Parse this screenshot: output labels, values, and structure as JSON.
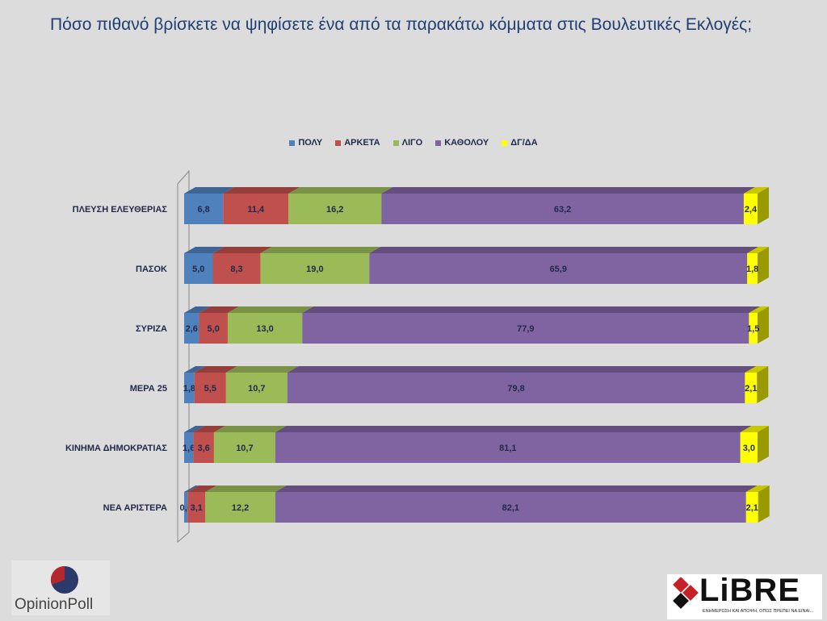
{
  "title": "Πόσο πιθανό βρίσκετε να ψηφίσετε ένα από τα παρακάτω κόμματα στις Βουλευτικές Εκλογές;",
  "chart_data": {
    "type": "bar",
    "orientation": "horizontal",
    "stacked": true,
    "categories": [
      "ΠΛΕΥΣΗ ΕΛΕΥΘΕΡΙΑΣ",
      "ΠΑΣΟΚ",
      "ΣΥΡΙΖΑ",
      "ΜΕΡΑ 25",
      "ΚΙΝΗΜΑ ΔΗΜΟΚΡΑΤΙΑΣ",
      "ΝΕΑ ΑΡΙΣΤΕΡΑ"
    ],
    "series": [
      {
        "name": "ΠΟΛΥ",
        "color": "#4f81bd",
        "values": [
          6.8,
          5.0,
          2.6,
          1.8,
          1.6,
          0.6
        ],
        "labels": [
          "6,8",
          "5,0",
          "2,6",
          "1,8",
          "1,6",
          "0,6"
        ]
      },
      {
        "name": "ΑΡΚΕΤΑ",
        "color": "#c0504d",
        "values": [
          11.4,
          8.3,
          5.0,
          5.5,
          3.6,
          3.1
        ],
        "labels": [
          "11,4",
          "8,3",
          "5,0",
          "5,5",
          "3,6",
          "3,1"
        ]
      },
      {
        "name": "ΛΙΓΟ",
        "color": "#9bbb59",
        "values": [
          16.2,
          19.0,
          13.0,
          10.7,
          10.7,
          12.2
        ],
        "labels": [
          "16,2",
          "19,0",
          "13,0",
          "10,7",
          "10,7",
          "12,2"
        ]
      },
      {
        "name": "ΚΑΘΟΛΟΥ",
        "color": "#8064a2",
        "values": [
          63.2,
          65.9,
          77.9,
          79.8,
          81.1,
          82.1
        ],
        "labels": [
          "63,2",
          "65,9",
          "77,9",
          "79,8",
          "81,1",
          "82,1"
        ]
      },
      {
        "name": "ΔΓ/ΔΑ",
        "color": "#ffff00",
        "values": [
          2.4,
          1.8,
          1.5,
          2.1,
          3.0,
          2.1
        ],
        "labels": [
          "2,4",
          "1,8",
          "1,5",
          "2,1",
          "3,0",
          "2,1"
        ]
      }
    ],
    "xlim": [
      0,
      100
    ],
    "legend_position": "top",
    "grid": false,
    "style": "3d"
  },
  "logos": {
    "opinionpoll": "OpinionPoll",
    "libre": "LiBRE",
    "libre_tagline": "ΕΝΗΜΕΡΩΣΗ ΚΑΙ ΑΠΟΨΗ, ΟΠΩΣ ΠΡΕΠΕΙ ΝΑ ΕΙΝΑΙ..."
  }
}
